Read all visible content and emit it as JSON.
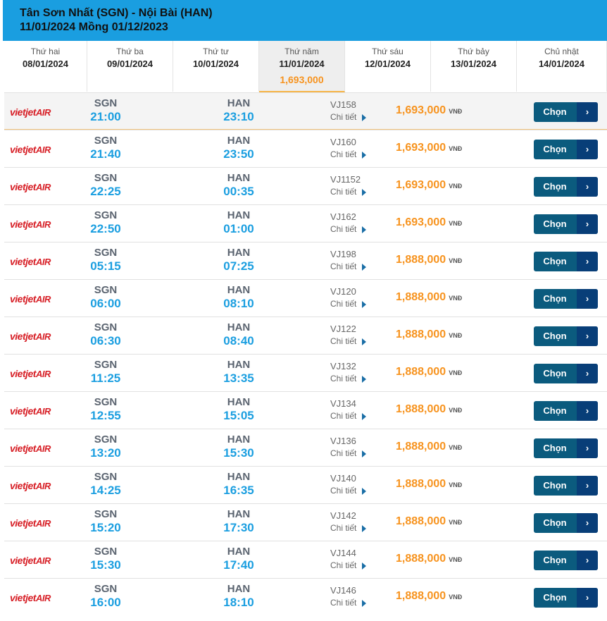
{
  "header": {
    "route": "Tân Sơn Nhất (SGN) - Nội Bài (HAN)",
    "subtitle": "11/01/2024 Mồng 01/12/2023"
  },
  "days": [
    {
      "name": "Thứ hai",
      "date": "08/01/2024",
      "price": ""
    },
    {
      "name": "Thứ ba",
      "date": "09/01/2024",
      "price": ""
    },
    {
      "name": "Thứ tư",
      "date": "10/01/2024",
      "price": ""
    },
    {
      "name": "Thứ năm",
      "date": "11/01/2024",
      "price": "1,693,000"
    },
    {
      "name": "Thứ sáu",
      "date": "12/01/2024",
      "price": ""
    },
    {
      "name": "Thứ bảy",
      "date": "13/01/2024",
      "price": ""
    },
    {
      "name": "Chủ nhật",
      "date": "14/01/2024",
      "price": ""
    }
  ],
  "active_day": 3,
  "airline_logo": {
    "part1": "vietjet",
    "part2": "AIR"
  },
  "labels": {
    "detail": "Chi tiết",
    "currency": "VNĐ",
    "choose": "Chọn",
    "arrow": "›"
  },
  "colors": {
    "header": "#1a9ee0",
    "price": "#f7931e",
    "time": "#1a9ee0",
    "button": "#0b5b7e",
    "logo": "#d71f26"
  },
  "flights": [
    {
      "from": "SGN",
      "dep": "21:00",
      "to": "HAN",
      "arr": "23:10",
      "flight": "VJ158",
      "price": "1,693,000"
    },
    {
      "from": "SGN",
      "dep": "21:40",
      "to": "HAN",
      "arr": "23:50",
      "flight": "VJ160",
      "price": "1,693,000"
    },
    {
      "from": "SGN",
      "dep": "22:25",
      "to": "HAN",
      "arr": "00:35",
      "flight": "VJ1152",
      "price": "1,693,000"
    },
    {
      "from": "SGN",
      "dep": "22:50",
      "to": "HAN",
      "arr": "01:00",
      "flight": "VJ162",
      "price": "1,693,000"
    },
    {
      "from": "SGN",
      "dep": "05:15",
      "to": "HAN",
      "arr": "07:25",
      "flight": "VJ198",
      "price": "1,888,000"
    },
    {
      "from": "SGN",
      "dep": "06:00",
      "to": "HAN",
      "arr": "08:10",
      "flight": "VJ120",
      "price": "1,888,000"
    },
    {
      "from": "SGN",
      "dep": "06:30",
      "to": "HAN",
      "arr": "08:40",
      "flight": "VJ122",
      "price": "1,888,000"
    },
    {
      "from": "SGN",
      "dep": "11:25",
      "to": "HAN",
      "arr": "13:35",
      "flight": "VJ132",
      "price": "1,888,000"
    },
    {
      "from": "SGN",
      "dep": "12:55",
      "to": "HAN",
      "arr": "15:05",
      "flight": "VJ134",
      "price": "1,888,000"
    },
    {
      "from": "SGN",
      "dep": "13:20",
      "to": "HAN",
      "arr": "15:30",
      "flight": "VJ136",
      "price": "1,888,000"
    },
    {
      "from": "SGN",
      "dep": "14:25",
      "to": "HAN",
      "arr": "16:35",
      "flight": "VJ140",
      "price": "1,888,000"
    },
    {
      "from": "SGN",
      "dep": "15:20",
      "to": "HAN",
      "arr": "17:30",
      "flight": "VJ142",
      "price": "1,888,000"
    },
    {
      "from": "SGN",
      "dep": "15:30",
      "to": "HAN",
      "arr": "17:40",
      "flight": "VJ144",
      "price": "1,888,000"
    },
    {
      "from": "SGN",
      "dep": "16:00",
      "to": "HAN",
      "arr": "18:10",
      "flight": "VJ146",
      "price": "1,888,000"
    }
  ]
}
